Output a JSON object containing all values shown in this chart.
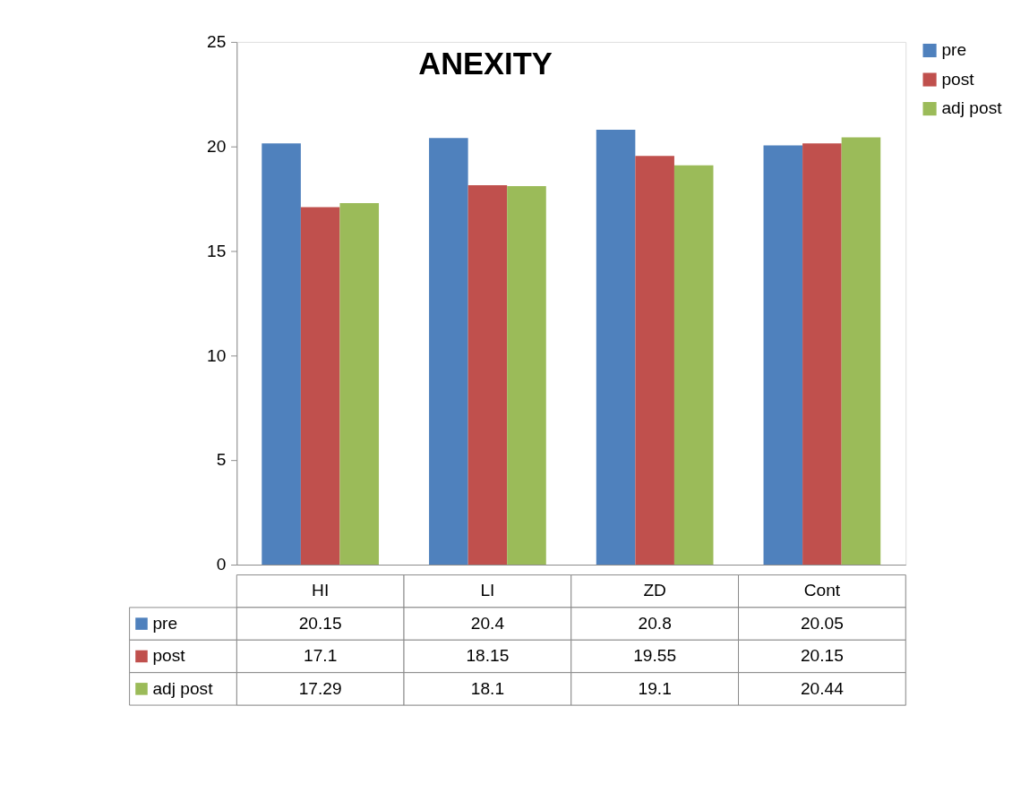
{
  "chart_data": {
    "type": "bar",
    "title": "ANEXITY",
    "categories": [
      "HI",
      "LI",
      "ZD",
      "Cont"
    ],
    "series": [
      {
        "name": "pre",
        "color": "#4f81bd",
        "values": [
          20.15,
          20.4,
          20.8,
          20.05
        ]
      },
      {
        "name": "post",
        "color": "#c0504d",
        "values": [
          17.1,
          18.15,
          19.55,
          20.15
        ]
      },
      {
        "name": "adj post",
        "color": "#9bbb59",
        "values": [
          17.29,
          18.1,
          19.1,
          20.44
        ]
      }
    ],
    "ylim": [
      0,
      25
    ],
    "yticks": [
      0,
      5,
      10,
      15,
      20,
      25
    ],
    "grid": false,
    "legend": "right",
    "data_labels": true
  }
}
